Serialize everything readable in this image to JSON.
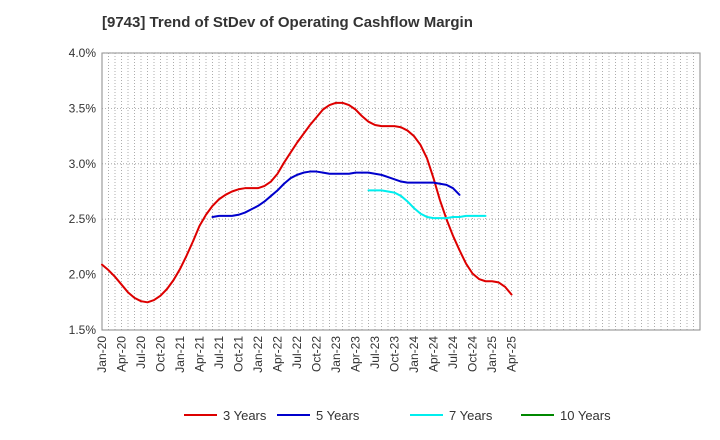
{
  "chart_data": {
    "type": "line",
    "title": "[9743]  Trend of StDev of Operating Cashflow Margin",
    "xlabel": "",
    "ylabel": "",
    "ylim": [
      1.5,
      4.0
    ],
    "yticks": [
      "1.5%",
      "2.0%",
      "2.5%",
      "3.0%",
      "3.5%",
      "4.0%"
    ],
    "ytick_values": [
      1.5,
      2.0,
      2.5,
      3.0,
      3.5,
      4.0
    ],
    "xticks": [
      "Jan-20",
      "Apr-20",
      "Jul-20",
      "Oct-20",
      "Jan-21",
      "Apr-21",
      "Jul-21",
      "Oct-21",
      "Jan-22",
      "Apr-22",
      "Jul-22",
      "Oct-22",
      "Jan-23",
      "Apr-23",
      "Jul-23",
      "Oct-23",
      "Jan-24",
      "Apr-24",
      "Jul-24",
      "Oct-24",
      "Jan-25",
      "Apr-25"
    ],
    "x_unit": "month",
    "grid": "vertical-monthly-dotted, horizontal-dotted",
    "legend_position": "bottom",
    "series": [
      {
        "name": "3 Years",
        "color": "#dd0000",
        "start": "Jan-20",
        "values": [
          2.09,
          2.04,
          1.98,
          1.91,
          1.84,
          1.79,
          1.76,
          1.75,
          1.77,
          1.81,
          1.87,
          1.95,
          2.05,
          2.17,
          2.3,
          2.44,
          2.54,
          2.62,
          2.68,
          2.72,
          2.75,
          2.77,
          2.78,
          2.78,
          2.78,
          2.8,
          2.84,
          2.91,
          3.01,
          3.1,
          3.19,
          3.27,
          3.35,
          3.42,
          3.49,
          3.53,
          3.55,
          3.55,
          3.53,
          3.49,
          3.43,
          3.38,
          3.35,
          3.34,
          3.34,
          3.34,
          3.33,
          3.3,
          3.25,
          3.17,
          3.05,
          2.87,
          2.67,
          2.5,
          2.35,
          2.22,
          2.1,
          2.01,
          1.96,
          1.94,
          1.94,
          1.93,
          1.89,
          1.82
        ]
      },
      {
        "name": "5 Years",
        "color": "#0000cc",
        "start": "Jun-21",
        "values": [
          2.52,
          2.53,
          2.53,
          2.53,
          2.54,
          2.56,
          2.59,
          2.62,
          2.66,
          2.71,
          2.76,
          2.82,
          2.87,
          2.9,
          2.92,
          2.93,
          2.93,
          2.92,
          2.91,
          2.91,
          2.91,
          2.91,
          2.92,
          2.92,
          2.92,
          2.91,
          2.9,
          2.88,
          2.86,
          2.84,
          2.83,
          2.83,
          2.83,
          2.83,
          2.83,
          2.82,
          2.81,
          2.78,
          2.72
        ]
      },
      {
        "name": "7 Years",
        "color": "#00eeee",
        "start": "Jun-23",
        "values": [
          2.76,
          2.76,
          2.76,
          2.75,
          2.74,
          2.71,
          2.66,
          2.6,
          2.55,
          2.52,
          2.51,
          2.51,
          2.51,
          2.52,
          2.52,
          2.53,
          2.53,
          2.53,
          2.53
        ]
      },
      {
        "name": "10 Years",
        "color": "#008800",
        "start": "Jan-20",
        "values": []
      }
    ]
  }
}
